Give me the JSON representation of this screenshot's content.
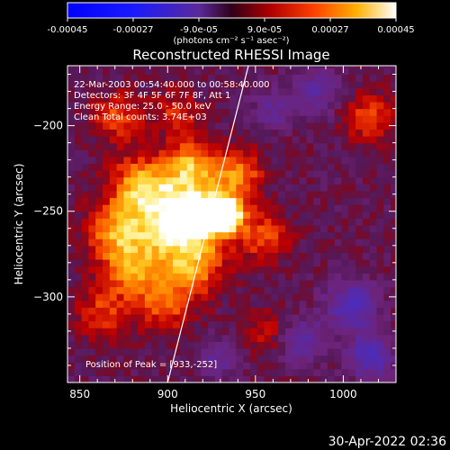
{
  "chart_data": {
    "type": "heatmap",
    "title": "Reconstructed RHESSI Image",
    "xlabel": "Heliocentric X (arcsec)",
    "ylabel": "Heliocentric Y (arcsec)",
    "xlim": [
      843,
      1030
    ],
    "ylim": [
      -350,
      -165
    ],
    "x_ticks": [
      850,
      900,
      950,
      1000
    ],
    "y_ticks": [
      -200,
      -250,
      -300
    ],
    "colorbar": {
      "range": [
        -0.00045,
        0.00045
      ],
      "tick_values": [
        -0.00045,
        -0.00027,
        -9e-05,
        9e-05,
        0.00027,
        0.00045
      ],
      "tick_labels": [
        "-0.00045",
        "-0.00027",
        "-9.0e-05",
        "9.0e-05",
        "0.00027",
        "0.00045"
      ],
      "units": "(photons cm⁻² s⁻¹ asec⁻²)"
    },
    "annotations": [
      "22-Mar-2003 00:54:40.000 to 00:58:40.000",
      "Detectors: 3F 4F 5F 6F 7F 8F, Att 1",
      "Energy Range: 25.0 - 50.0 keV",
      "Clean     Total counts: 3.74E+03"
    ],
    "peak_label": "Position of Peak = [933,-252]",
    "peak": [
      933,
      -252
    ],
    "limb_line": [
      [
        900,
        -350
      ],
      [
        946,
        -165
      ]
    ],
    "sources": [
      {
        "x": 933,
        "y": -252,
        "amp": 1.0,
        "sigma": 7
      },
      {
        "x": 918,
        "y": -250,
        "amp": 0.75,
        "sigma": 14
      },
      {
        "x": 900,
        "y": -258,
        "amp": 0.65,
        "sigma": 16
      },
      {
        "x": 885,
        "y": -235,
        "amp": 0.7,
        "sigma": 12
      },
      {
        "x": 912,
        "y": -222,
        "amp": 0.6,
        "sigma": 10
      },
      {
        "x": 940,
        "y": -228,
        "amp": 0.55,
        "sigma": 10
      },
      {
        "x": 870,
        "y": -262,
        "amp": 0.55,
        "sigma": 12
      },
      {
        "x": 880,
        "y": -285,
        "amp": 0.55,
        "sigma": 12
      },
      {
        "x": 915,
        "y": -282,
        "amp": 0.55,
        "sigma": 12
      },
      {
        "x": 898,
        "y": -305,
        "amp": 0.45,
        "sigma": 11
      },
      {
        "x": 862,
        "y": -310,
        "amp": 0.4,
        "sigma": 10
      },
      {
        "x": 872,
        "y": -195,
        "amp": 0.45,
        "sigma": 10
      },
      {
        "x": 905,
        "y": -192,
        "amp": 0.35,
        "sigma": 9
      },
      {
        "x": 955,
        "y": -265,
        "amp": 0.45,
        "sigma": 10
      },
      {
        "x": 1015,
        "y": -195,
        "amp": 0.45,
        "sigma": 10
      },
      {
        "x": 958,
        "y": -320,
        "amp": 0.3,
        "sigma": 10
      }
    ],
    "negatives": [
      {
        "x": 1005,
        "y": -305,
        "amp": -0.6,
        "sigma": 10
      },
      {
        "x": 1015,
        "y": -335,
        "amp": -0.55,
        "sigma": 9
      },
      {
        "x": 975,
        "y": -325,
        "amp": -0.5,
        "sigma": 9
      },
      {
        "x": 985,
        "y": -180,
        "amp": -0.4,
        "sigma": 9
      },
      {
        "x": 960,
        "y": -190,
        "amp": -0.35,
        "sigma": 8
      },
      {
        "x": 930,
        "y": -335,
        "amp": -0.35,
        "sigma": 8
      }
    ]
  },
  "footer": {
    "timestamp": "30-Apr-2022 02:36"
  }
}
